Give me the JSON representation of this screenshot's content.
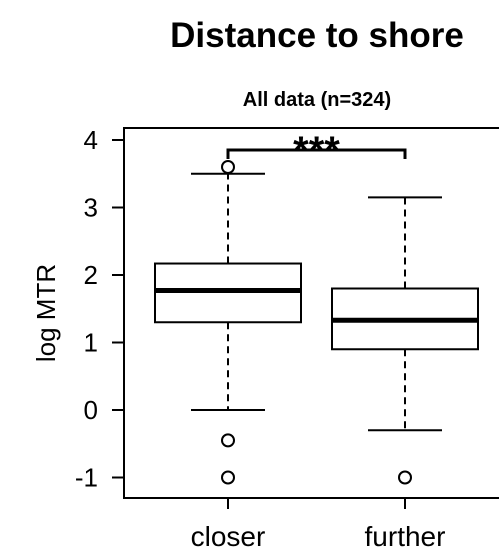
{
  "chart_data": {
    "type": "box",
    "title": "Distance to shore",
    "subtitle": "All data  (n=324)",
    "xlabel": "",
    "ylabel": "log MTR",
    "ylim": [
      -1.0,
      4.3
    ],
    "yticks": [
      -1,
      0,
      1,
      2,
      3,
      4
    ],
    "categories": [
      "closer",
      "further"
    ],
    "boxes": [
      {
        "category": "closer",
        "whisker_low": 0.0,
        "q1": 1.3,
        "median": 1.77,
        "q3": 2.17,
        "whisker_high": 3.5,
        "outliers": [
          3.6,
          -0.45,
          -1.0
        ]
      },
      {
        "category": "further",
        "whisker_low": -0.3,
        "q1": 0.9,
        "median": 1.33,
        "q3": 1.8,
        "whisker_high": 3.15,
        "outliers": [
          -1.0
        ]
      }
    ],
    "significance": {
      "label": "***",
      "from": "closer",
      "to": "further"
    },
    "grid": false
  }
}
